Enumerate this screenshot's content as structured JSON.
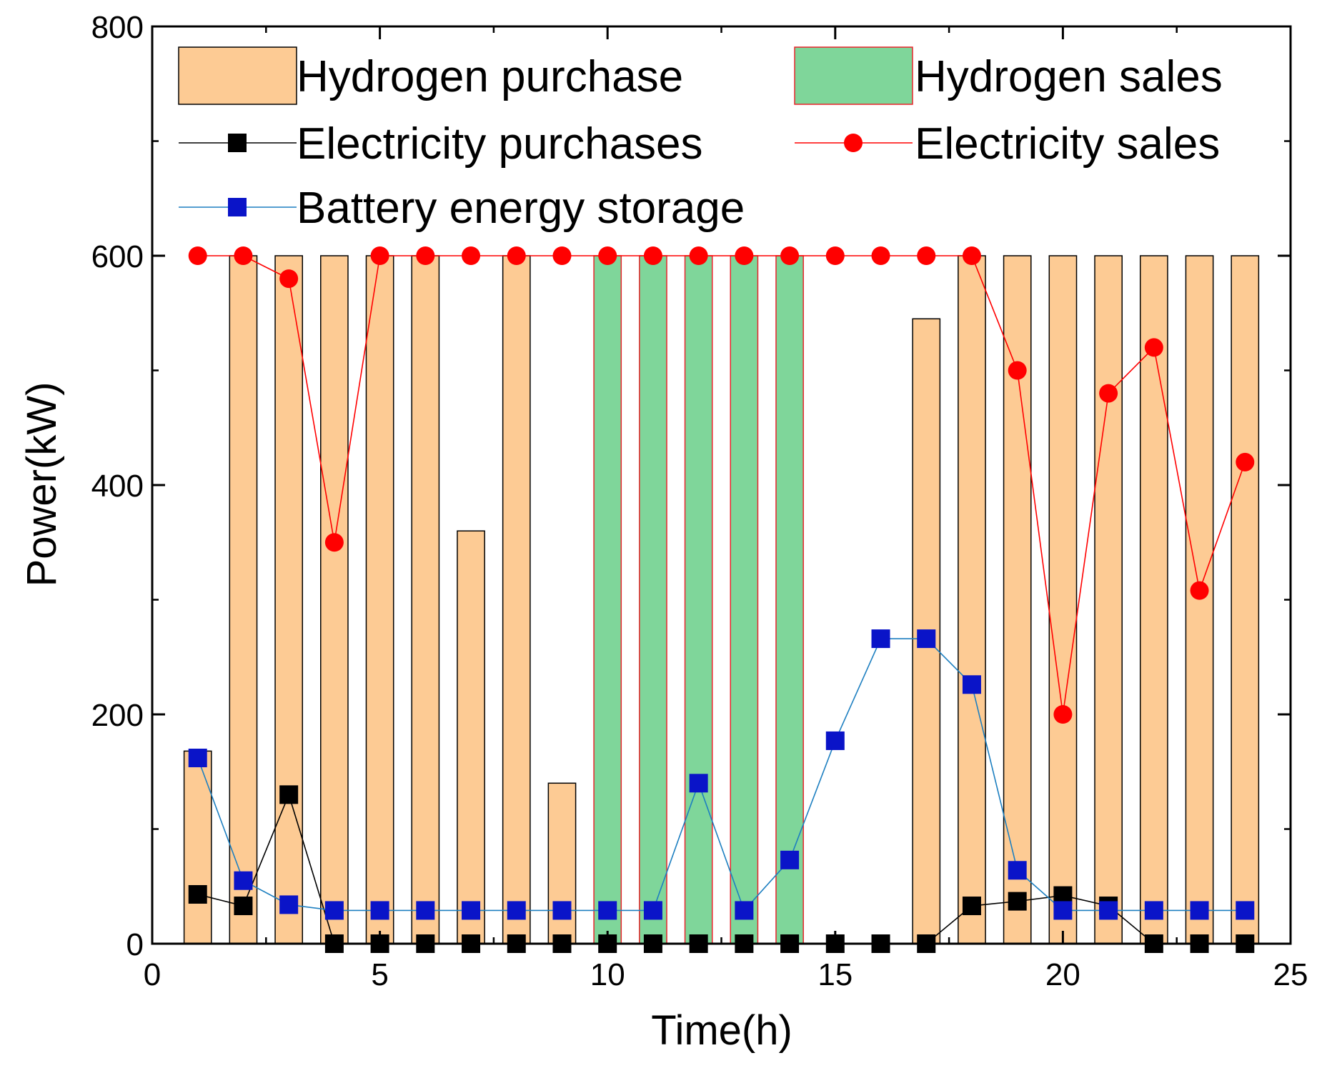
{
  "chart_data": {
    "type": "bar",
    "title": "",
    "xlabel": "Time(h)",
    "ylabel": "Power(kW)",
    "xlim": [
      0,
      25
    ],
    "ylim": [
      0,
      800
    ],
    "xticks": [
      0,
      5,
      10,
      15,
      20,
      25
    ],
    "yticks": [
      0,
      200,
      400,
      600,
      800
    ],
    "grid": false,
    "legend_position": "top",
    "x": [
      1,
      2,
      3,
      4,
      5,
      6,
      7,
      8,
      9,
      10,
      11,
      12,
      13,
      14,
      15,
      16,
      17,
      18,
      19,
      20,
      21,
      22,
      23,
      24
    ],
    "series": [
      {
        "name": "Hydrogen purchase",
        "kind": "bar",
        "color": "#FDCB94",
        "edge_color": "#000000",
        "values": [
          168,
          600,
          600,
          600,
          600,
          600,
          360,
          600,
          140,
          0,
          0,
          0,
          0,
          0,
          0,
          0,
          545,
          600,
          600,
          600,
          600,
          600,
          600,
          600
        ]
      },
      {
        "name": "Hydrogen sales",
        "kind": "bar",
        "color": "#7FD69A",
        "edge_color": "#E8242B",
        "values": [
          0,
          0,
          0,
          0,
          0,
          0,
          0,
          0,
          0,
          600,
          600,
          600,
          600,
          600,
          0,
          0,
          0,
          0,
          0,
          0,
          0,
          0,
          0,
          0
        ]
      },
      {
        "name": "Electricity purchases",
        "kind": "line",
        "marker": "square",
        "color": "#000000",
        "values": [
          43,
          33,
          130,
          0,
          0,
          0,
          0,
          0,
          0,
          0,
          0,
          0,
          0,
          0,
          0,
          0,
          0,
          33,
          37,
          42,
          33,
          0,
          0,
          0
        ]
      },
      {
        "name": "Electricity sales",
        "kind": "line",
        "marker": "circle",
        "color": "#FF0000",
        "values": [
          600,
          600,
          580,
          350,
          600,
          600,
          600,
          600,
          600,
          600,
          600,
          600,
          600,
          600,
          600,
          600,
          600,
          600,
          500,
          200,
          480,
          520,
          308,
          420
        ]
      },
      {
        "name": "Battery energy storage",
        "kind": "line",
        "marker": "square",
        "color": "#0A14C8",
        "line_color": "#1D7FC0",
        "values": [
          162,
          55,
          34,
          29,
          29,
          29,
          29,
          29,
          29,
          29,
          29,
          140,
          29,
          73,
          177,
          266,
          266,
          226,
          64,
          29,
          29,
          29,
          29,
          29
        ]
      }
    ]
  }
}
